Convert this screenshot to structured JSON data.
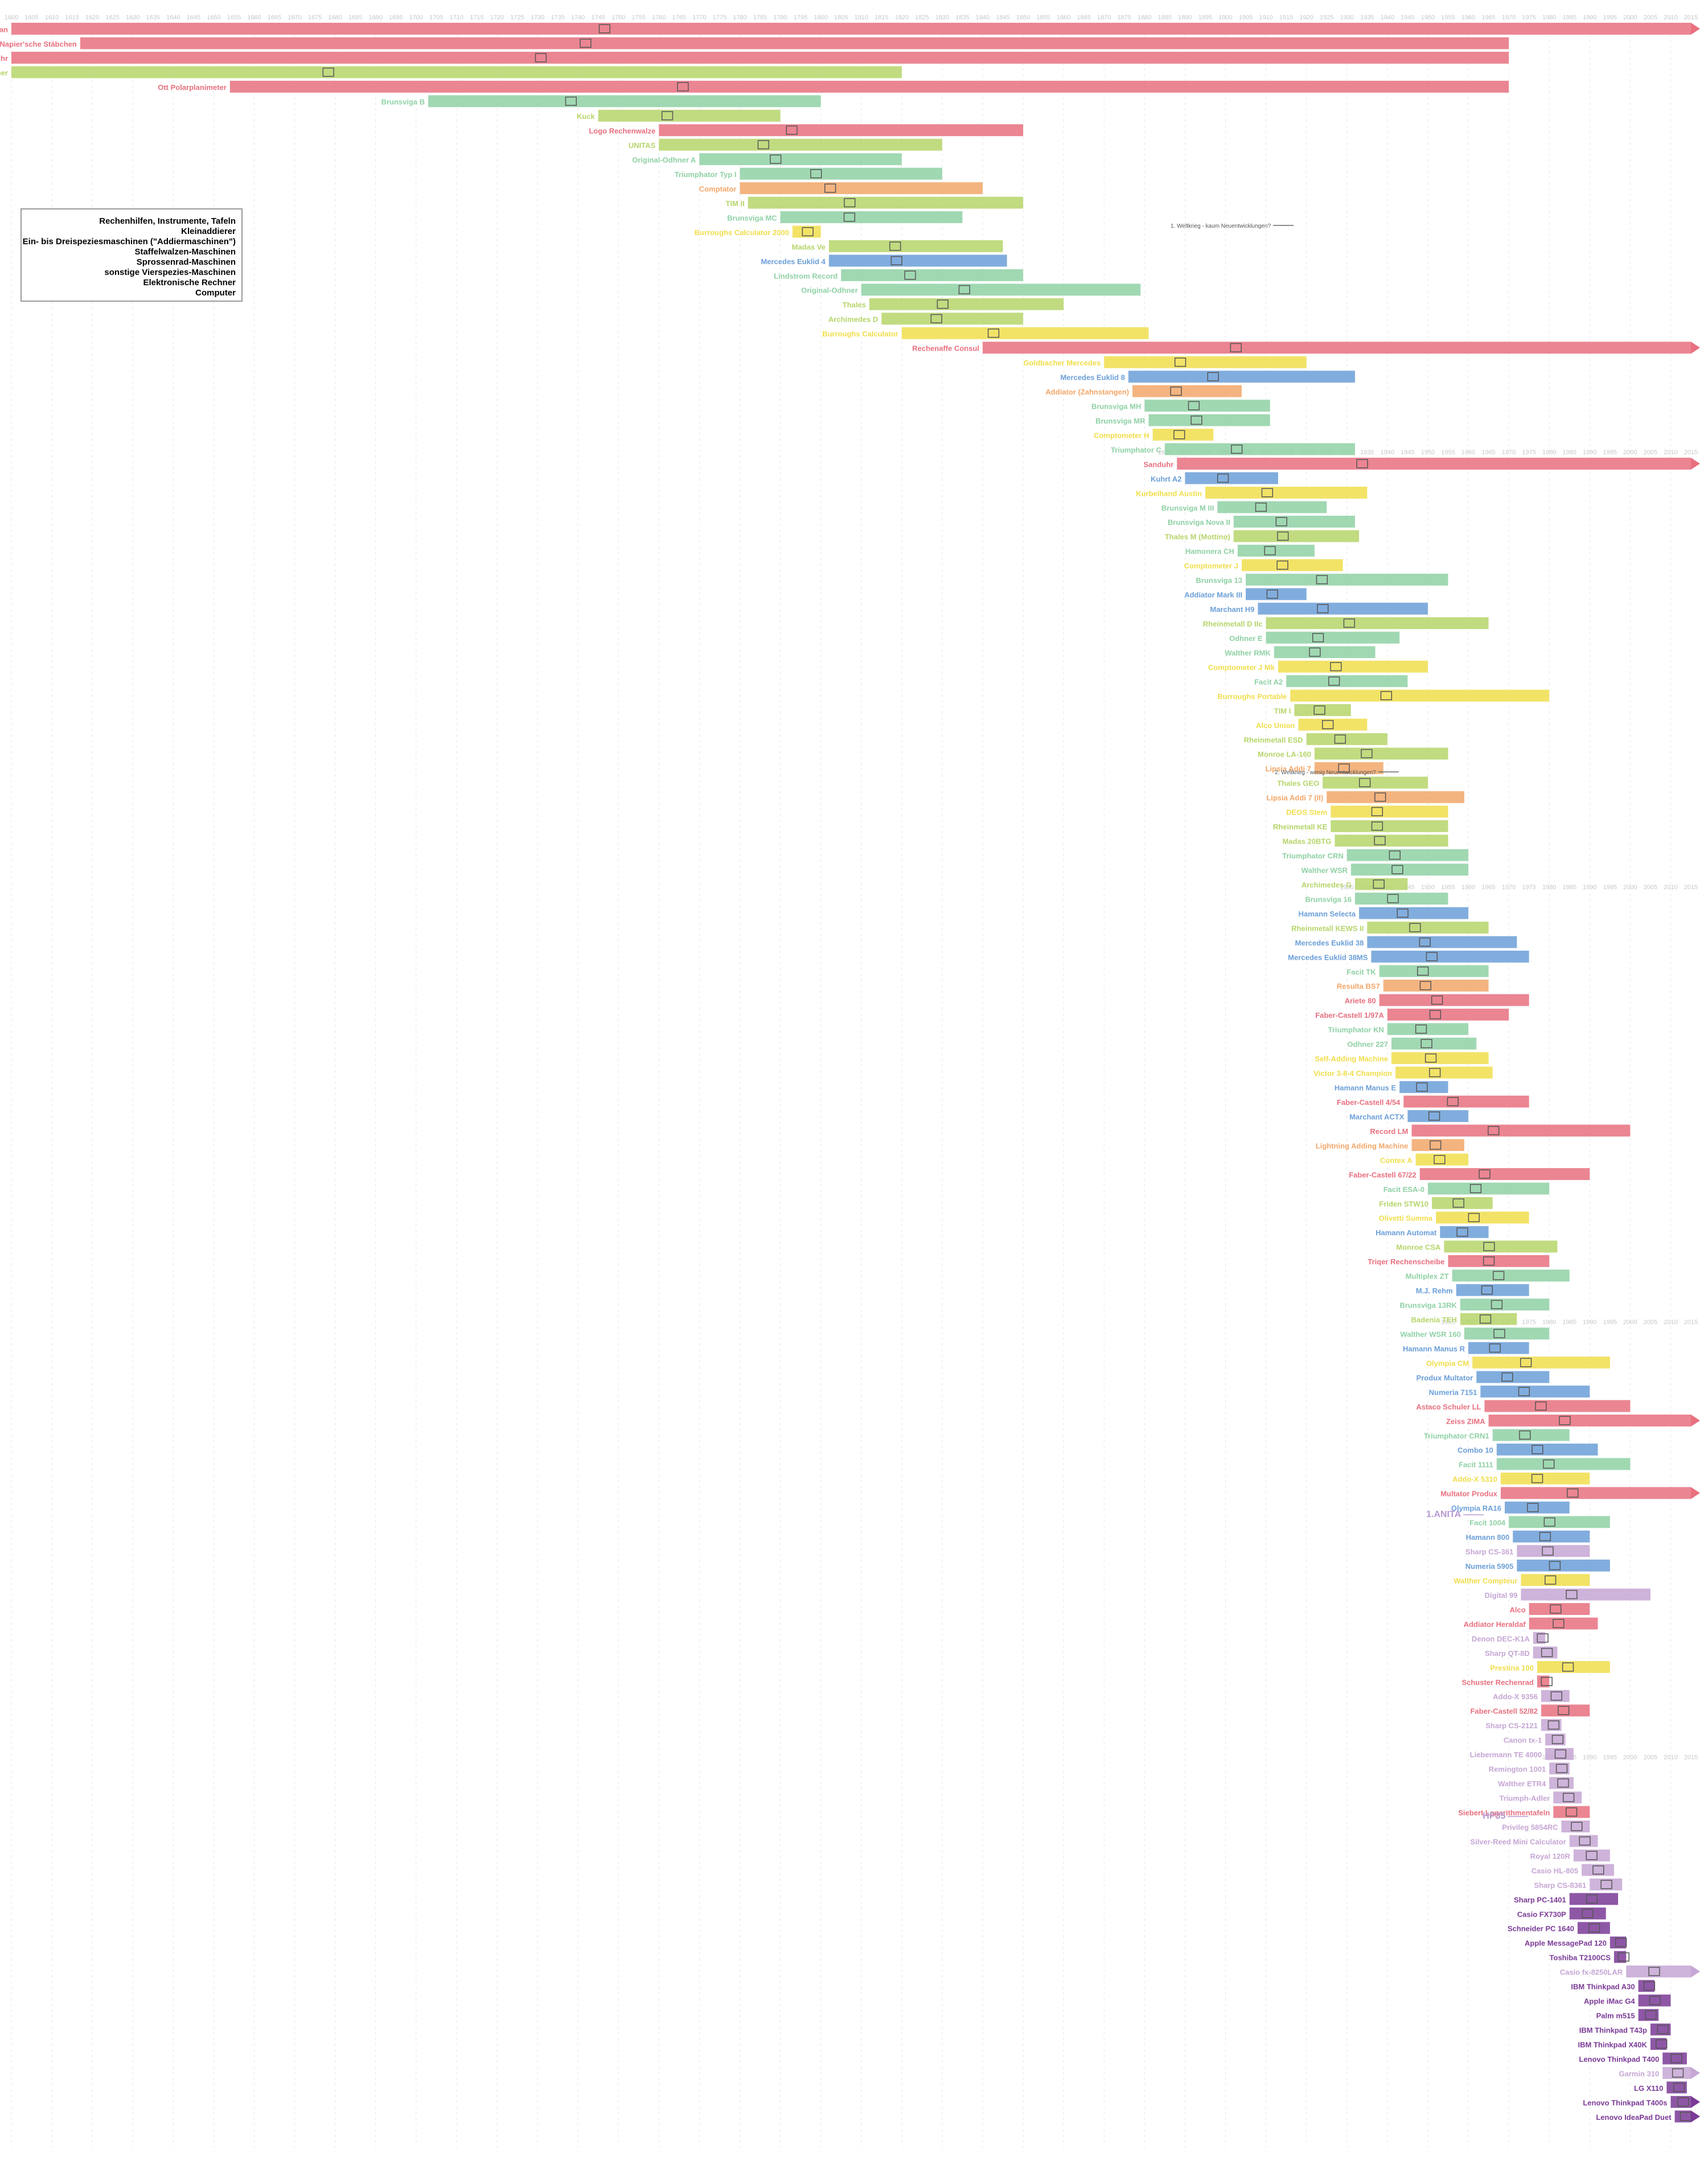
{
  "chart_data": {
    "type": "gantt",
    "title": "",
    "xlabel": "",
    "ylabel": "",
    "xlim": [
      1600,
      2015
    ],
    "grid": true,
    "legend_position": "left",
    "categories": [
      {
        "key": "instruments",
        "label": "Rechenhilfen, Instrumente, Tafeln",
        "color": "#e8707f"
      },
      {
        "key": "adders",
        "label": "Kleinaddierer",
        "color": "#f2a76a"
      },
      {
        "key": "keyadders",
        "label": "Ein- bis Dreispeziesmaschinen (\"Addiermaschinen\")",
        "color": "#f0de4c"
      },
      {
        "key": "stepped",
        "label": "Staffelwalzen-Maschinen",
        "color": "#b6d56a"
      },
      {
        "key": "pinwheel",
        "label": "Sprossenrad-Maschinen",
        "color": "#8fd1a5"
      },
      {
        "key": "other4",
        "label": "sonstige Vierspezies-Maschinen",
        "color": "#6b9fd8"
      },
      {
        "key": "electronic",
        "label": "Elektronische Rechner",
        "color": "#c6a6d4"
      },
      {
        "key": "computer",
        "label": "Computer",
        "color": "#7a3a96"
      }
    ],
    "annotations": [
      {
        "label": "1. Weltkrieg - kaum Neuentwicklungen?",
        "year": 1914
      },
      {
        "label": "2. Weltkrieg - wenig Neuentwicklungen?",
        "year": 1940
      },
      {
        "label": "1.ANITA",
        "year": 1961
      },
      {
        "label": "HP35",
        "year": 1972
      }
    ],
    "series": [
      {
        "name": "Suan-Pan",
        "cat": "instruments",
        "start": 1600,
        "end": 2015
      },
      {
        "name": "Napier'sche Stäbchen",
        "cat": "instruments",
        "start": 1617,
        "end": 1970
      },
      {
        "name": "Stechuhr",
        "cat": "instruments",
        "start": 1600,
        "end": 1970
      },
      {
        "name": "Rechenschieber",
        "cat": "stepped",
        "start": 1600,
        "end": 1820
      },
      {
        "name": "Ott Polarplanimeter",
        "cat": "instruments",
        "start": 1654,
        "end": 1970
      },
      {
        "name": "Brunsviga B",
        "cat": "pinwheel",
        "start": 1703,
        "end": 1800
      },
      {
        "name": "Kuck",
        "cat": "stepped",
        "start": 1745,
        "end": 1790
      },
      {
        "name": "Logo Rechenwalze",
        "cat": "instruments",
        "start": 1760,
        "end": 1850
      },
      {
        "name": "UNITAS",
        "cat": "stepped",
        "start": 1760,
        "end": 1830
      },
      {
        "name": "Original-Odhner A",
        "cat": "pinwheel",
        "start": 1770,
        "end": 1820
      },
      {
        "name": "Triumphator Typ I",
        "cat": "pinwheel",
        "start": 1780,
        "end": 1830
      },
      {
        "name": "Comptator",
        "cat": "adders",
        "start": 1780,
        "end": 1840
      },
      {
        "name": "TIM II",
        "cat": "stepped",
        "start": 1782,
        "end": 1850
      },
      {
        "name": "Brunsviga MC",
        "cat": "pinwheel",
        "start": 1790,
        "end": 1835
      },
      {
        "name": "Burroughs Calculator 2000",
        "cat": "keyadders",
        "start": 1793,
        "end": 1800
      },
      {
        "name": "Madas Ve",
        "cat": "stepped",
        "start": 1802,
        "end": 1845
      },
      {
        "name": "Mercedes Euklid 4",
        "cat": "other4",
        "start": 1802,
        "end": 1846
      },
      {
        "name": "Lindstrom Record",
        "cat": "pinwheel",
        "start": 1805,
        "end": 1850
      },
      {
        "name": "Original-Odhner",
        "cat": "pinwheel",
        "start": 1810,
        "end": 1879
      },
      {
        "name": "Thales",
        "cat": "stepped",
        "start": 1812,
        "end": 1860
      },
      {
        "name": "Archimedes D",
        "cat": "stepped",
        "start": 1815,
        "end": 1850
      },
      {
        "name": "Burroughs Calculator",
        "cat": "keyadders",
        "start": 1820,
        "end": 1881
      },
      {
        "name": "Rechenaffe Consul",
        "cat": "instruments",
        "start": 1840,
        "end": 2015
      },
      {
        "name": "Goldbacher Mercedes",
        "cat": "keyadders",
        "start": 1870,
        "end": 1920
      },
      {
        "name": "Mercedes Euklid 8",
        "cat": "other4",
        "start": 1876,
        "end": 1932
      },
      {
        "name": "Addiator (Zahnstangen)",
        "cat": "adders",
        "start": 1877,
        "end": 1904
      },
      {
        "name": "Brunsviga MH",
        "cat": "pinwheel",
        "start": 1880,
        "end": 1911
      },
      {
        "name": "Brunsviga MR",
        "cat": "pinwheel",
        "start": 1881,
        "end": 1911
      },
      {
        "name": "Comptometer H",
        "cat": "keyadders",
        "start": 1882,
        "end": 1897
      },
      {
        "name": "Triumphator C",
        "cat": "pinwheel",
        "start": 1885,
        "end": 1932
      },
      {
        "name": "Sanduhr",
        "cat": "instruments",
        "start": 1888,
        "end": 2015
      },
      {
        "name": "Kuhrt A2",
        "cat": "other4",
        "start": 1890,
        "end": 1913
      },
      {
        "name": "Kurbelhand Austin",
        "cat": "keyadders",
        "start": 1895,
        "end": 1935
      },
      {
        "name": "Brunsviga M III",
        "cat": "pinwheel",
        "start": 1898,
        "end": 1925
      },
      {
        "name": "Brunsviga Nova II",
        "cat": "pinwheel",
        "start": 1902,
        "end": 1932
      },
      {
        "name": "Thales M (Mottino)",
        "cat": "stepped",
        "start": 1902,
        "end": 1933
      },
      {
        "name": "Hamonera CH",
        "cat": "pinwheel",
        "start": 1903,
        "end": 1922
      },
      {
        "name": "Comptometer J",
        "cat": "keyadders",
        "start": 1904,
        "end": 1929
      },
      {
        "name": "Brunsviga 13",
        "cat": "pinwheel",
        "start": 1905,
        "end": 1955
      },
      {
        "name": "Addiator Mark III",
        "cat": "other4",
        "start": 1905,
        "end": 1920
      },
      {
        "name": "Marchant H9",
        "cat": "other4",
        "start": 1908,
        "end": 1950
      },
      {
        "name": "Rheinmetall D IIc",
        "cat": "stepped",
        "start": 1910,
        "end": 1965
      },
      {
        "name": "Odhner E",
        "cat": "pinwheel",
        "start": 1910,
        "end": 1943
      },
      {
        "name": "Walther RMK",
        "cat": "pinwheel",
        "start": 1912,
        "end": 1937
      },
      {
        "name": "Comptometer J Mk",
        "cat": "keyadders",
        "start": 1913,
        "end": 1950
      },
      {
        "name": "Facit A2",
        "cat": "pinwheel",
        "start": 1915,
        "end": 1945
      },
      {
        "name": "Burroughs Portable",
        "cat": "keyadders",
        "start": 1916,
        "end": 1980
      },
      {
        "name": "TIM I",
        "cat": "stepped",
        "start": 1917,
        "end": 1931
      },
      {
        "name": "Alco Union",
        "cat": "keyadders",
        "start": 1918,
        "end": 1935
      },
      {
        "name": "Rheinmetall ESD",
        "cat": "stepped",
        "start": 1920,
        "end": 1940
      },
      {
        "name": "Monroe LA-160",
        "cat": "stepped",
        "start": 1922,
        "end": 1955
      },
      {
        "name": "Lipsia Addi 7",
        "cat": "adders",
        "start": 1922,
        "end": 1939
      },
      {
        "name": "Thales GEO",
        "cat": "stepped",
        "start": 1924,
        "end": 1950
      },
      {
        "name": "Lipsia Addi 7 (II)",
        "cat": "adders",
        "start": 1925,
        "end": 1959
      },
      {
        "name": "DEOS Stem",
        "cat": "keyadders",
        "start": 1926,
        "end": 1955
      },
      {
        "name": "Rheinmetall KE",
        "cat": "stepped",
        "start": 1926,
        "end": 1955
      },
      {
        "name": "Madas 20BTG",
        "cat": "stepped",
        "start": 1927,
        "end": 1955
      },
      {
        "name": "Triumphator CRN",
        "cat": "pinwheel",
        "start": 1930,
        "end": 1960
      },
      {
        "name": "Walther WSR",
        "cat": "pinwheel",
        "start": 1931,
        "end": 1960
      },
      {
        "name": "Archimedes G",
        "cat": "stepped",
        "start": 1932,
        "end": 1945
      },
      {
        "name": "Brunsviga 16",
        "cat": "pinwheel",
        "start": 1932,
        "end": 1955
      },
      {
        "name": "Hamann Selecta",
        "cat": "other4",
        "start": 1933,
        "end": 1960
      },
      {
        "name": "Rheinmetall KEWS II",
        "cat": "stepped",
        "start": 1935,
        "end": 1965
      },
      {
        "name": "Mercedes Euklid 38",
        "cat": "other4",
        "start": 1935,
        "end": 1972
      },
      {
        "name": "Mercedes Euklid 38MS",
        "cat": "other4",
        "start": 1936,
        "end": 1975
      },
      {
        "name": "Facit TK",
        "cat": "pinwheel",
        "start": 1938,
        "end": 1965
      },
      {
        "name": "Resulta BS7",
        "cat": "adders",
        "start": 1939,
        "end": 1965
      },
      {
        "name": "Ariete 80",
        "cat": "instruments",
        "start": 1938,
        "end": 1975
      },
      {
        "name": "Faber-Castell 1/97A",
        "cat": "instruments",
        "start": 1940,
        "end": 1970
      },
      {
        "name": "Triumphator KN",
        "cat": "pinwheel",
        "start": 1940,
        "end": 1960
      },
      {
        "name": "Odhner 227",
        "cat": "pinwheel",
        "start": 1941,
        "end": 1962
      },
      {
        "name": "Self-Adding Machine",
        "cat": "keyadders",
        "start": 1941,
        "end": 1965
      },
      {
        "name": "Victor 3-8-4 Champion",
        "cat": "keyadders",
        "start": 1942,
        "end": 1966
      },
      {
        "name": "Hamann Manus E",
        "cat": "other4",
        "start": 1943,
        "end": 1955
      },
      {
        "name": "Faber-Castell 4/54",
        "cat": "instruments",
        "start": 1944,
        "end": 1975
      },
      {
        "name": "Marchant ACTX",
        "cat": "other4",
        "start": 1945,
        "end": 1960
      },
      {
        "name": "Record LM",
        "cat": "instruments",
        "start": 1946,
        "end": 2000
      },
      {
        "name": "Lightning Adding Machine",
        "cat": "adders",
        "start": 1946,
        "end": 1959
      },
      {
        "name": "Contex A",
        "cat": "keyadders",
        "start": 1947,
        "end": 1960
      },
      {
        "name": "Faber-Castell 67/22",
        "cat": "instruments",
        "start": 1948,
        "end": 1990
      },
      {
        "name": "Facit ESA-0",
        "cat": "pinwheel",
        "start": 1950,
        "end": 1980
      },
      {
        "name": "Friden STW10",
        "cat": "stepped",
        "start": 1951,
        "end": 1966
      },
      {
        "name": "Olivetti Summa",
        "cat": "keyadders",
        "start": 1952,
        "end": 1975
      },
      {
        "name": "Hamann Automat",
        "cat": "other4",
        "start": 1953,
        "end": 1965
      },
      {
        "name": "Monroe CSA",
        "cat": "stepped",
        "start": 1954,
        "end": 1982
      },
      {
        "name": "Triqer Rechenscheibe",
        "cat": "instruments",
        "start": 1955,
        "end": 1980
      },
      {
        "name": "Multiplex ZT",
        "cat": "pinwheel",
        "start": 1956,
        "end": 1985
      },
      {
        "name": "M.J. Rehm",
        "cat": "other4",
        "start": 1957,
        "end": 1975
      },
      {
        "name": "Brunsviga 13RK",
        "cat": "pinwheel",
        "start": 1958,
        "end": 1980
      },
      {
        "name": "Badenia TEH",
        "cat": "stepped",
        "start": 1958,
        "end": 1972
      },
      {
        "name": "Walther WSR 160",
        "cat": "pinwheel",
        "start": 1959,
        "end": 1980
      },
      {
        "name": "Hamann Manus R",
        "cat": "other4",
        "start": 1960,
        "end": 1975
      },
      {
        "name": "Olympia CM",
        "cat": "keyadders",
        "start": 1961,
        "end": 1995
      },
      {
        "name": "Produx Multator",
        "cat": "other4",
        "start": 1962,
        "end": 1980
      },
      {
        "name": "Numeria 7151",
        "cat": "other4",
        "start": 1963,
        "end": 1990
      },
      {
        "name": "Astaco Schuler LL",
        "cat": "instruments",
        "start": 1964,
        "end": 2000
      },
      {
        "name": "Zeiss ZIMA",
        "cat": "instruments",
        "start": 1965,
        "end": 2015
      },
      {
        "name": "Triumphator CRN1",
        "cat": "pinwheel",
        "start": 1966,
        "end": 1985
      },
      {
        "name": "Combo 10",
        "cat": "other4",
        "start": 1967,
        "end": 1992
      },
      {
        "name": "Facit 1111",
        "cat": "pinwheel",
        "start": 1967,
        "end": 2000
      },
      {
        "name": "Addo-X 5310",
        "cat": "keyadders",
        "start": 1968,
        "end": 1990
      },
      {
        "name": "Multator Produx",
        "cat": "instruments",
        "start": 1968,
        "end": 2015
      },
      {
        "name": "Olympia RA16",
        "cat": "other4",
        "start": 1969,
        "end": 1985
      },
      {
        "name": "Facit 1004",
        "cat": "pinwheel",
        "start": 1970,
        "end": 1995
      },
      {
        "name": "Hamann 800",
        "cat": "other4",
        "start": 1971,
        "end": 1990
      },
      {
        "name": "Sharp CS-361",
        "cat": "electronic",
        "start": 1972,
        "end": 1990
      },
      {
        "name": "Numeria 5905",
        "cat": "other4",
        "start": 1972,
        "end": 1995
      },
      {
        "name": "Walther Compteur",
        "cat": "keyadders",
        "start": 1973,
        "end": 1990
      },
      {
        "name": "Digital 99",
        "cat": "electronic",
        "start": 1973,
        "end": 2005
      },
      {
        "name": "Alco",
        "cat": "instruments",
        "start": 1975,
        "end": 1990
      },
      {
        "name": "Addiator Heraldaf",
        "cat": "instruments",
        "start": 1975,
        "end": 1992
      },
      {
        "name": "Denon DEC-K1A",
        "cat": "electronic",
        "start": 1976,
        "end": 1979
      },
      {
        "name": "Sharp QT-8D",
        "cat": "electronic",
        "start": 1976,
        "end": 1982
      },
      {
        "name": "Prestina 100",
        "cat": "keyadders",
        "start": 1977,
        "end": 1995
      },
      {
        "name": "Schuster Rechenrad",
        "cat": "instruments",
        "start": 1977,
        "end": 1980
      },
      {
        "name": "Addo-X 9356",
        "cat": "electronic",
        "start": 1978,
        "end": 1985
      },
      {
        "name": "Faber-Castell 52/82",
        "cat": "instruments",
        "start": 1978,
        "end": 1990
      },
      {
        "name": "Sharp CS-2121",
        "cat": "electronic",
        "start": 1978,
        "end": 1983
      },
      {
        "name": "Canon tx-1",
        "cat": "electronic",
        "start": 1979,
        "end": 1984
      },
      {
        "name": "Liebermann TE 4000",
        "cat": "electronic",
        "start": 1979,
        "end": 1986
      },
      {
        "name": "Remington 1001",
        "cat": "electronic",
        "start": 1980,
        "end": 1985
      },
      {
        "name": "Walther ETR4",
        "cat": "electronic",
        "start": 1980,
        "end": 1986
      },
      {
        "name": "Triumph-Adler",
        "cat": "electronic",
        "start": 1981,
        "end": 1988
      },
      {
        "name": "Siebert Logarithmentafeln",
        "cat": "instruments",
        "start": 1981,
        "end": 1990
      },
      {
        "name": "Privileg 5854RC",
        "cat": "electronic",
        "start": 1983,
        "end": 1990
      },
      {
        "name": "Silver-Reed Mini Calculator",
        "cat": "electronic",
        "start": 1985,
        "end": 1992
      },
      {
        "name": "Royal 120R",
        "cat": "electronic",
        "start": 1986,
        "end": 1995
      },
      {
        "name": "Casio HL-805",
        "cat": "electronic",
        "start": 1988,
        "end": 1996
      },
      {
        "name": "Sharp CS-8361",
        "cat": "electronic",
        "start": 1990,
        "end": 1998
      },
      {
        "name": "Sharp PC-1401",
        "cat": "computer",
        "start": 1985,
        "end": 1997
      },
      {
        "name": "Casio FX730P",
        "cat": "computer",
        "start": 1985,
        "end": 1994
      },
      {
        "name": "Schneider PC 1640",
        "cat": "computer",
        "start": 1987,
        "end": 1995
      },
      {
        "name": "Apple MessagePad 120",
        "cat": "computer",
        "start": 1995,
        "end": 1999
      },
      {
        "name": "Toshiba T2100CS",
        "cat": "computer",
        "start": 1996,
        "end": 1999
      },
      {
        "name": "Casio fx-8250LAR",
        "cat": "electronic",
        "start": 1999,
        "end": 2015
      },
      {
        "name": "IBM Thinkpad A30",
        "cat": "computer",
        "start": 2002,
        "end": 2006
      },
      {
        "name": "Apple iMac G4",
        "cat": "computer",
        "start": 2002,
        "end": 2010
      },
      {
        "name": "Palm m515",
        "cat": "computer",
        "start": 2002,
        "end": 2007
      },
      {
        "name": "IBM Thinkpad T43p",
        "cat": "computer",
        "start": 2005,
        "end": 2010
      },
      {
        "name": "IBM Thinkpad X40K",
        "cat": "computer",
        "start": 2005,
        "end": 2009
      },
      {
        "name": "Lenovo Thinkpad T400",
        "cat": "computer",
        "start": 2008,
        "end": 2014
      },
      {
        "name": "Garmin 310",
        "cat": "electronic",
        "start": 2008,
        "end": 2015
      },
      {
        "name": "LG X110",
        "cat": "computer",
        "start": 2009,
        "end": 2014
      },
      {
        "name": "Lenovo Thinkpad T400s",
        "cat": "computer",
        "start": 2010,
        "end": 2015
      },
      {
        "name": "Lenovo IdeaPad Duet",
        "cat": "computer",
        "start": 2011,
        "end": 2015
      }
    ]
  }
}
